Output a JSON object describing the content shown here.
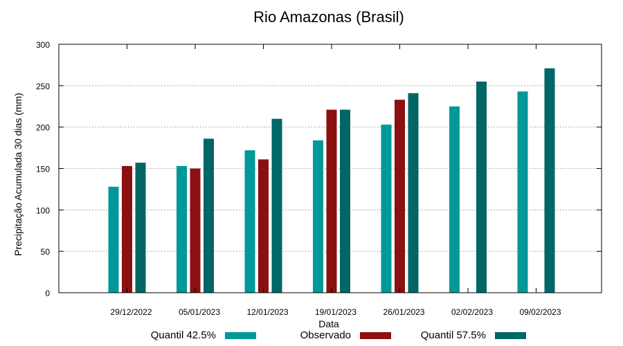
{
  "chart_data": {
    "type": "bar",
    "title": "Rio Amazonas (Brasil)",
    "xlabel": "Data",
    "ylabel": "Precipitação Acumulada 30 dias (mm)",
    "ylim": [
      0,
      300
    ],
    "yticks": [
      0,
      50,
      100,
      150,
      200,
      250,
      300
    ],
    "grid": true,
    "categories": [
      "29/12/2022",
      "05/01/2023",
      "12/01/2023",
      "19/01/2023",
      "26/01/2023",
      "02/02/2023",
      "09/02/2023"
    ],
    "series": [
      {
        "name": "Quantil 42.5%",
        "color": "#009999",
        "values": [
          128,
          153,
          172,
          184,
          203,
          225,
          243
        ]
      },
      {
        "name": "Observado",
        "color": "#8b1010",
        "values": [
          153,
          150,
          161,
          221,
          233,
          null,
          null
        ]
      },
      {
        "name": "Quantil 57.5%",
        "color": "#006666",
        "values": [
          157,
          186,
          210,
          221,
          241,
          255,
          271
        ]
      }
    ],
    "legend_position": "bottom"
  }
}
